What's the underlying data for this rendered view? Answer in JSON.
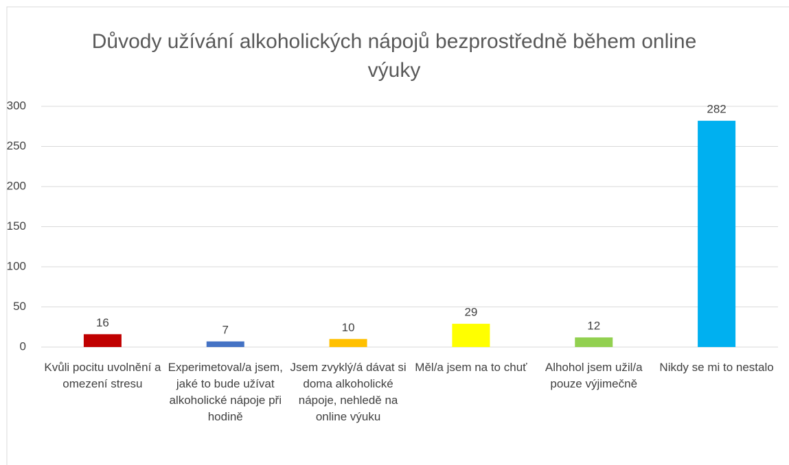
{
  "chart_data": {
    "type": "bar",
    "title": "Důvody užívání alkoholických nápojů bezprostředně během online výuky",
    "categories": [
      "Kvůli pocitu uvolnění a omezení stresu",
      "Experimetoval/a jsem, jaké to bude užívat alkoholické nápoje při hodině",
      "Jsem zvyklý/á dávat si doma alkoholické nápoje, nehledě na online výuku",
      "Měl/a jsem na to chuť",
      "Alhohol jsem užil/a pouze výjimečně",
      "Nikdy se mi to nestalo"
    ],
    "values": [
      16,
      7,
      10,
      29,
      12,
      282
    ],
    "colors": [
      "#c00000",
      "#4472c4",
      "#ffc000",
      "#ffff00",
      "#92d050",
      "#00b0f0"
    ],
    "ylim": [
      0,
      300
    ],
    "yticks": [
      0,
      50,
      100,
      150,
      200,
      250,
      300
    ],
    "grid": true
  }
}
